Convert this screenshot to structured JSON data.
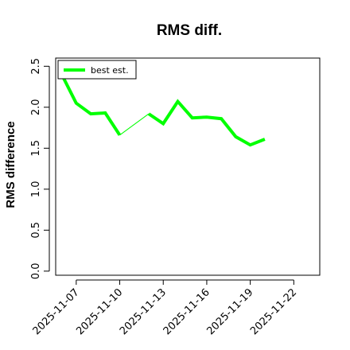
{
  "chart_data": {
    "type": "line",
    "title": "RMS diff.",
    "xlabel": "",
    "ylabel": "RMS difference",
    "x": [
      "2025-11-06",
      "2025-11-07",
      "2025-11-08",
      "2025-11-09",
      "2025-11-10",
      "2025-11-12",
      "2025-11-13",
      "2025-11-14",
      "2025-11-15",
      "2025-11-16",
      "2025-11-17",
      "2025-11-18",
      "2025-11-19",
      "2025-11-20"
    ],
    "xlim": [
      "2025-11-05T14:00",
      "2025-11-23T19:00"
    ],
    "xticks": [
      "2025-11-07",
      "2025-11-10",
      "2025-11-13",
      "2025-11-16",
      "2025-11-19",
      "2025-11-22"
    ],
    "ylim": [
      -0.05,
      2.6
    ],
    "yticks": [
      "0.0",
      "0.5",
      "1.0",
      "1.5",
      "2.0",
      "2.5"
    ],
    "series": [
      {
        "name": "best est.",
        "color": "#00ff00",
        "values": [
          2.4,
          2.05,
          1.92,
          1.93,
          1.66,
          1.92,
          1.8,
          2.07,
          1.87,
          1.88,
          1.86,
          1.64,
          1.54,
          1.61
        ]
      }
    ],
    "legend": "top-left",
    "grid": false
  }
}
